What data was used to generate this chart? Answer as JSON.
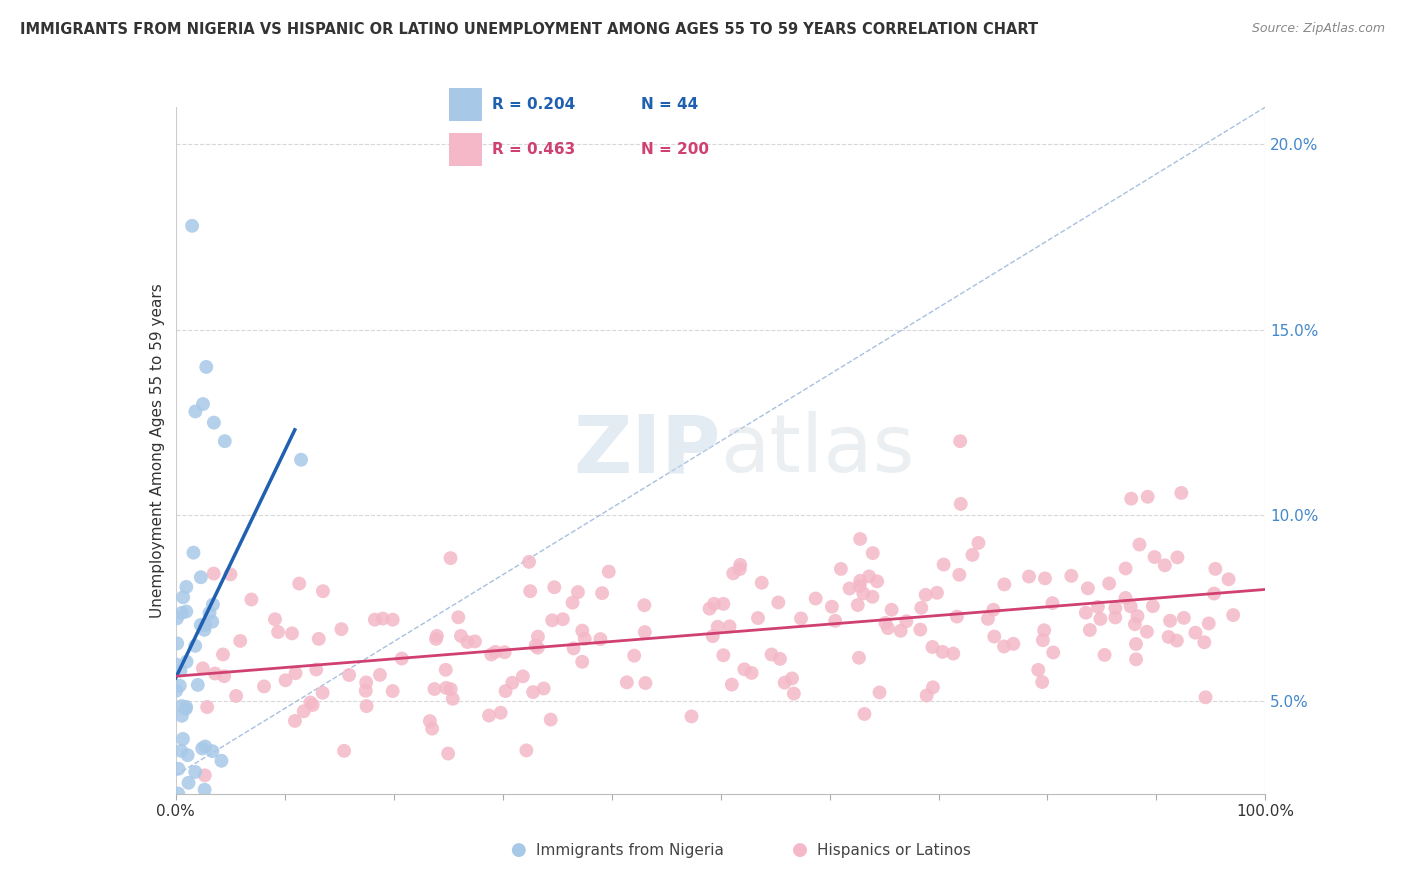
{
  "title": "IMMIGRANTS FROM NIGERIA VS HISPANIC OR LATINO UNEMPLOYMENT AMONG AGES 55 TO 59 YEARS CORRELATION CHART",
  "source": "Source: ZipAtlas.com",
  "ylabel": "Unemployment Among Ages 55 to 59 years",
  "xlabel_blue": "Immigrants from Nigeria",
  "xlabel_pink": "Hispanics or Latinos",
  "xlim": [
    0,
    100
  ],
  "ylim": [
    2.5,
    21
  ],
  "ytick_vals": [
    5,
    10,
    15,
    20
  ],
  "ytick_labels": [
    "5.0%",
    "10.0%",
    "15.0%",
    "20.0%"
  ],
  "xtick_vals": [
    0,
    100
  ],
  "xtick_labels": [
    "0.0%",
    "100.0%"
  ],
  "legend_blue_R": "0.204",
  "legend_blue_N": "44",
  "legend_pink_R": "0.463",
  "legend_pink_N": "200",
  "blue_scatter_color": "#a8c8e8",
  "pink_scatter_color": "#f4b8c8",
  "blue_line_color": "#2060b0",
  "pink_line_color": "#d04070",
  "diag_color": "#a8c0e0",
  "grid_color": "#d8d8d8",
  "watermark_color": "#e0e8f0",
  "background_color": "#ffffff",
  "seed": 42,
  "nigeria_n": 44,
  "hispanic_n": 200
}
